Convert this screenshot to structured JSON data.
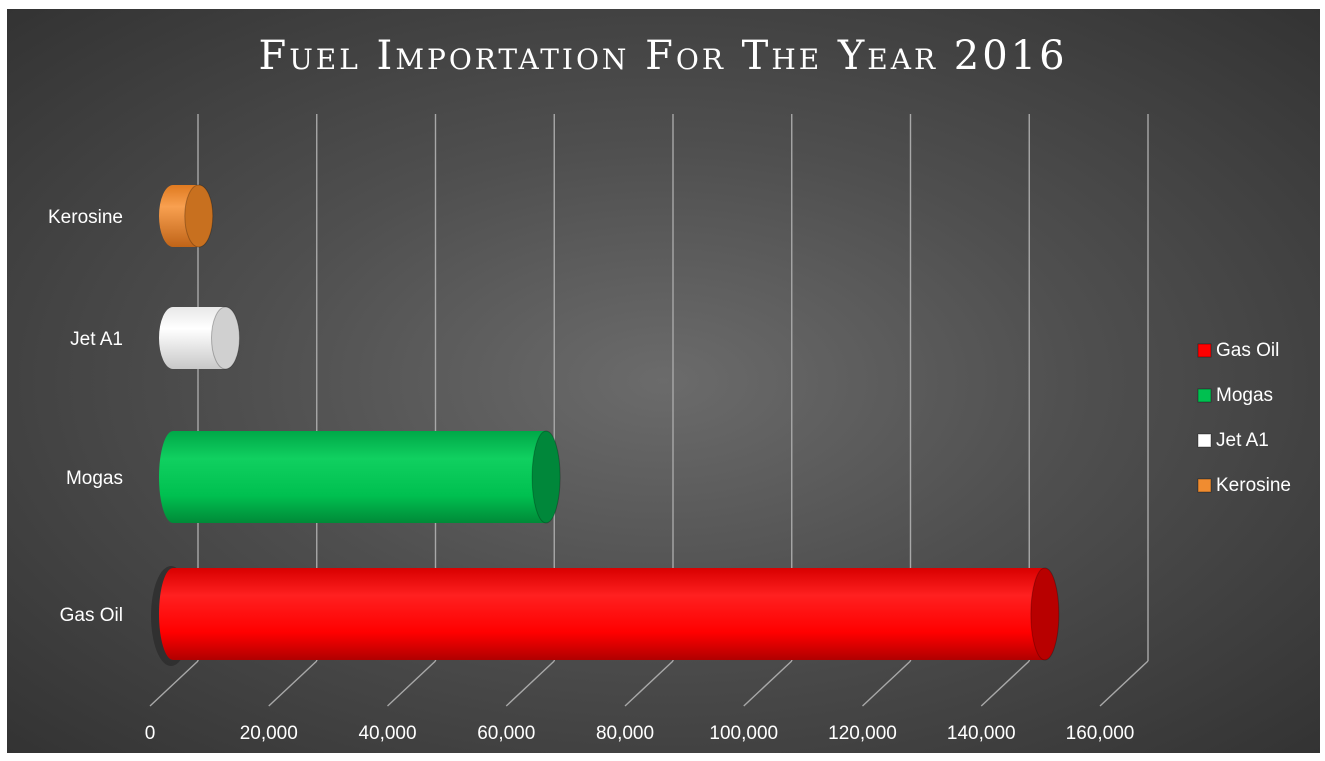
{
  "chart_data": {
    "type": "bar",
    "orientation": "horizontal",
    "title": "Fuel Importation For The Year 2016",
    "categories": [
      "Gas Oil",
      "Mogas",
      "Jet A1",
      "Kerosine"
    ],
    "values": [
      146000,
      62000,
      8000,
      3500
    ],
    "colors": [
      "#ff0000",
      "#00c050",
      "#ffffff",
      "#f08c30"
    ],
    "xlim": [
      0,
      160000
    ],
    "xticks": [
      0,
      20000,
      40000,
      60000,
      80000,
      100000,
      120000,
      140000,
      160000
    ],
    "xtick_labels": [
      "0",
      "20,000",
      "40,000",
      "60,000",
      "80,000",
      "100,000",
      "120,000",
      "140,000",
      "160,000"
    ],
    "grid": true,
    "legend": {
      "position": "right",
      "entries": [
        "Gas Oil",
        "Mogas",
        "Jet A1",
        "Kerosine"
      ]
    }
  }
}
